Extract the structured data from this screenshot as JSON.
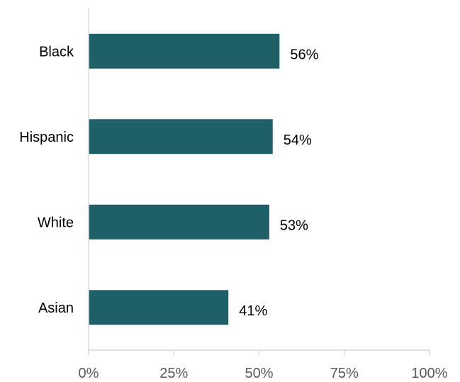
{
  "chart_data": {
    "type": "bar",
    "orientation": "horizontal",
    "categories": [
      "Black",
      "Hispanic",
      "White",
      "Asian"
    ],
    "values": [
      56,
      54,
      53,
      41
    ],
    "value_labels": [
      "56%",
      "54%",
      "53%",
      "41%"
    ],
    "xlim": [
      0,
      100
    ],
    "x_ticks": [
      0,
      25,
      50,
      75,
      100
    ],
    "x_tick_labels": [
      "0%",
      "25%",
      "50%",
      "75%",
      "100%"
    ],
    "grid": false,
    "legend": "none",
    "bar_color": "#1f6068",
    "axis_color": "#d9d9d9",
    "tick_label_color": "#595959"
  }
}
